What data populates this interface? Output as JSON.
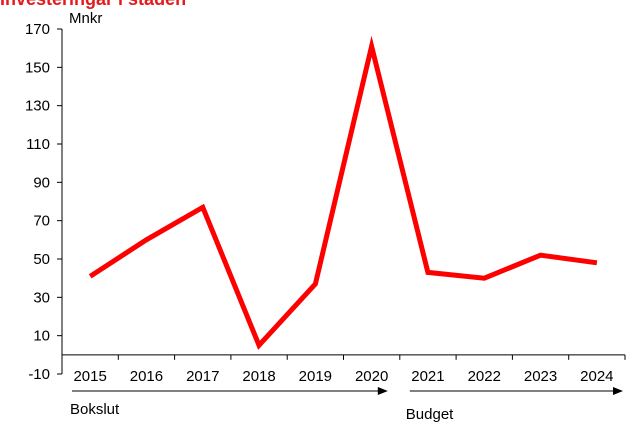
{
  "chart_data": {
    "type": "line",
    "title": "Investeringar i staden",
    "unit_label": "Mnkr",
    "categories": [
      "2015",
      "2016",
      "2017",
      "2018",
      "2019",
      "2020",
      "2021",
      "2022",
      "2023",
      "2024"
    ],
    "series": [
      {
        "values": [
          41,
          60,
          77,
          5,
          37,
          161,
          43,
          40,
          52,
          48
        ],
        "color": "#ff0000"
      }
    ],
    "y_ticks": [
      -10,
      10,
      30,
      50,
      70,
      90,
      110,
      130,
      150,
      170
    ],
    "ylim": [
      -10,
      170
    ],
    "grid": false,
    "period_labels": [
      {
        "label": "Bokslut",
        "from": "2015",
        "to": "2020"
      },
      {
        "label": "Budget",
        "from": "2021",
        "to": "2024"
      }
    ],
    "axis_color": "#000000"
  }
}
